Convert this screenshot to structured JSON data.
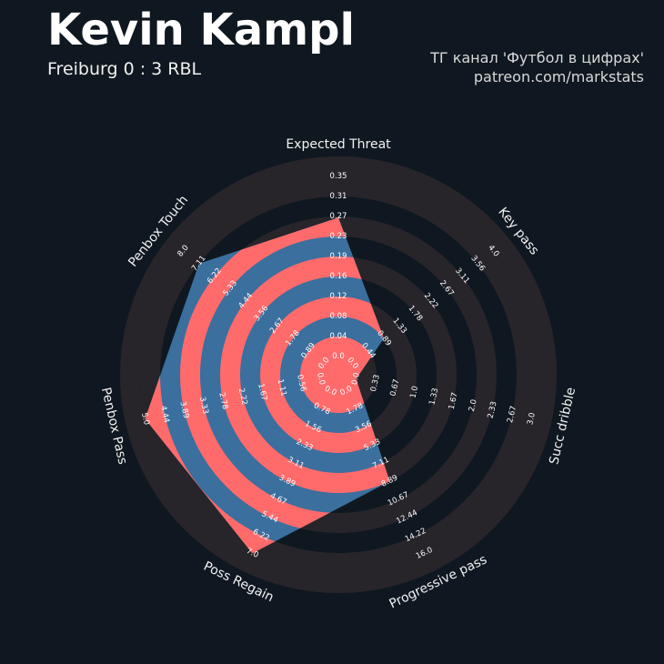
{
  "header": {
    "title": "Kevin Kampl",
    "subtitle": "Freiburg 0 : 3 RBL",
    "credit_line1": "ТГ канал 'Футбол в цифрах'",
    "credit_line2": "patreon.com/markstats"
  },
  "colors": {
    "background": "#0f1820",
    "ring_dark": "#27252a",
    "ring_light": "#ff6b6b",
    "polygon": "#3a6f9e",
    "text": "#ffffff"
  },
  "chart_data": {
    "type": "radar",
    "title": "Kevin Kampl",
    "subtitle": "Freiburg 0 : 3 RBL",
    "parameters": [
      {
        "name": "Expected Threat",
        "value": 0.27,
        "ticks": [
          "0.0",
          "0.04",
          "0.08",
          "0.12",
          "0.16",
          "0.19",
          "0.23",
          "0.27",
          "0.31",
          "0.35"
        ]
      },
      {
        "name": "Key pass",
        "value": 0.89,
        "ticks": [
          "0.0",
          "0.44",
          "0.89",
          "1.33",
          "1.78",
          "2.22",
          "2.67",
          "3.11",
          "3.56",
          "4.0"
        ]
      },
      {
        "name": "Succ dribble",
        "value": 0.0,
        "ticks": [
          "0.0",
          "0.33",
          "0.67",
          "1.0",
          "1.33",
          "1.67",
          "2.0",
          "2.33",
          "2.67",
          "3.0"
        ]
      },
      {
        "name": "Progressive pass",
        "value": 8.89,
        "ticks": [
          "0.0",
          "1.78",
          "3.56",
          "5.33",
          "7.11",
          "8.89",
          "10.67",
          "12.44",
          "14.22",
          "16.0"
        ]
      },
      {
        "name": "Poss Regain",
        "value": 7.0,
        "ticks": [
          "0.0",
          "0.78",
          "1.56",
          "2.33",
          "3.11",
          "3.89",
          "4.67",
          "5.44",
          "6.22",
          "7.0"
        ]
      },
      {
        "name": "Penbox Pass",
        "value": 5.0,
        "ticks": [
          "0.0",
          "0.56",
          "1.11",
          "1.67",
          "2.22",
          "2.78",
          "3.33",
          "3.89",
          "4.44",
          "5.0"
        ]
      },
      {
        "name": "Penbox Touch",
        "value": 7.11,
        "ticks": [
          "0.0",
          "0.89",
          "1.78",
          "2.67",
          "3.56",
          "4.44",
          "5.33",
          "6.22",
          "7.11",
          "8.0"
        ]
      }
    ]
  }
}
